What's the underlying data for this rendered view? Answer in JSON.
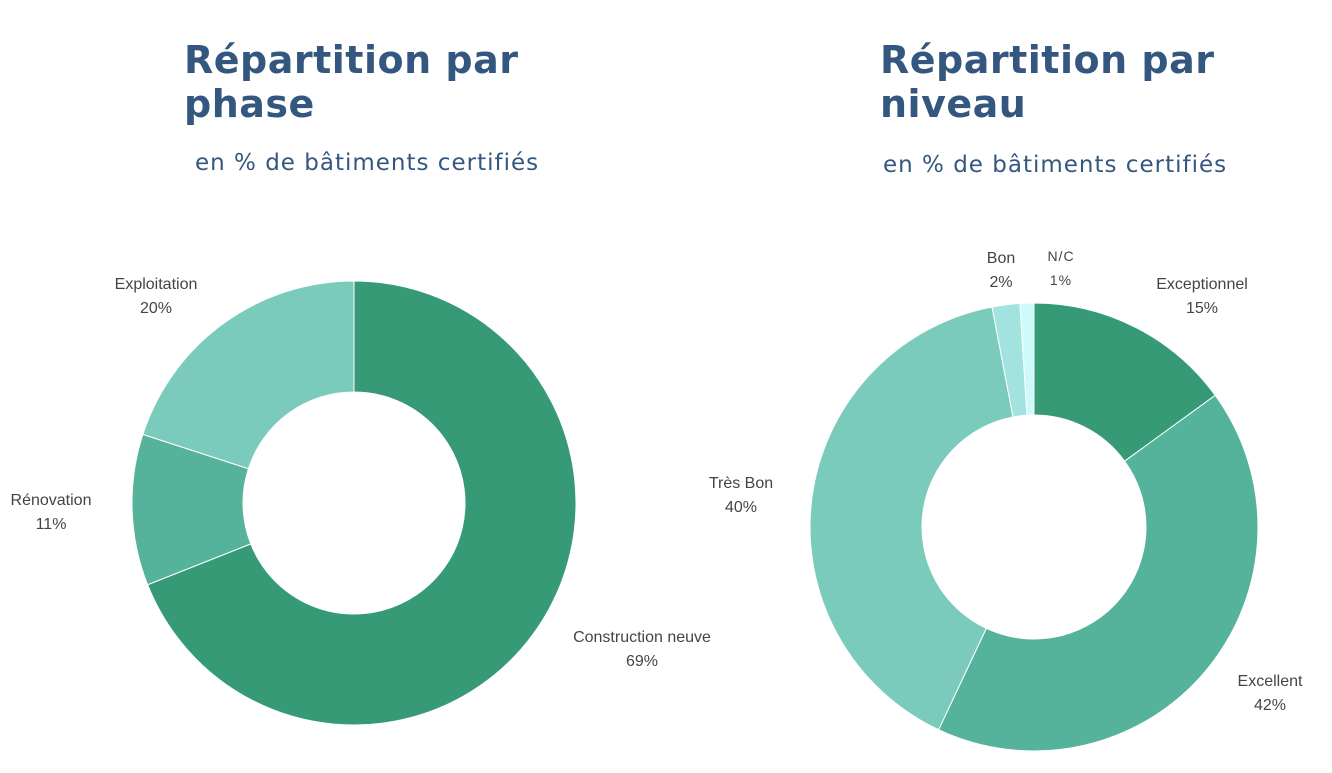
{
  "charts": {
    "left": {
      "title_line1": "Répartition par",
      "title_line2": "phase",
      "subtitle": "en % de bâtiments certifiés"
    },
    "right": {
      "title_line1": "Répartition par",
      "title_line2": "niveau",
      "subtitle": "en % de bâtiments certifiés"
    }
  },
  "chart_data": [
    {
      "type": "pie",
      "variant": "donut",
      "title": "Répartition par phase",
      "subtitle": "en % de bâtiments certifiés",
      "slices": [
        {
          "label": "Construction neuve",
          "value": 69,
          "value_label": "69%",
          "color": "#369a77"
        },
        {
          "label": "Rénovation",
          "value": 11,
          "value_label": "11%",
          "color": "#55b29b"
        },
        {
          "label": "Exploitation",
          "value": 20,
          "value_label": "20%",
          "color": "#7bcbbd"
        }
      ]
    },
    {
      "type": "pie",
      "variant": "donut",
      "title": "Répartition par niveau",
      "subtitle": "en % de bâtiments certifiés",
      "slices": [
        {
          "label": "Exceptionnel",
          "value": 15,
          "value_label": "15%",
          "color": "#369a77"
        },
        {
          "label": "Excellent",
          "value": 42,
          "value_label": "42%",
          "color": "#55b29b"
        },
        {
          "label": "Très Bon",
          "value": 40,
          "value_label": "40%",
          "color": "#7bcbbd"
        },
        {
          "label": "Bon",
          "value": 2,
          "value_label": "2%",
          "color": "#a3e3df"
        },
        {
          "label": "N/C",
          "value": 1,
          "value_label": "1%",
          "color": "#cdfafa"
        }
      ]
    }
  ]
}
